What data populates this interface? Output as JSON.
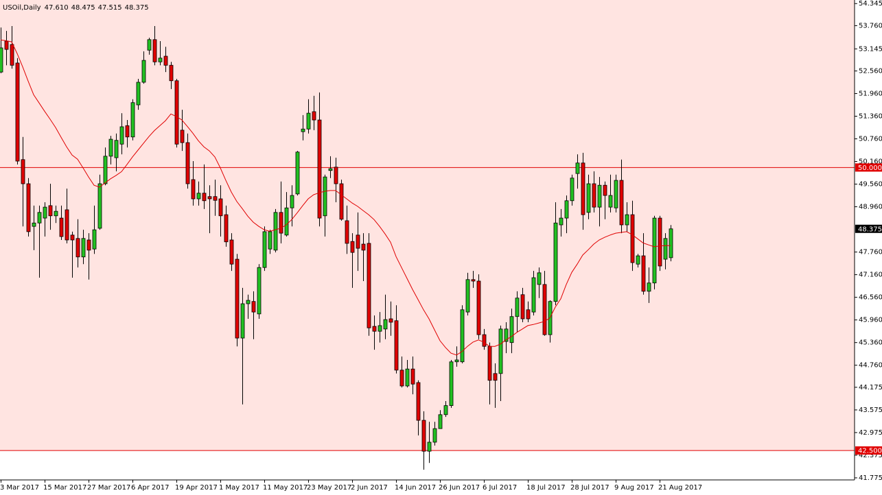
{
  "header": {
    "symbol": "USOil,Daily",
    "values": [
      "47.610",
      "48.475",
      "47.515",
      "48.375"
    ]
  },
  "chart_data": {
    "type": "candlestick",
    "categories": [
      "3 Mar 2017",
      null,
      null,
      null,
      null,
      null,
      null,
      null,
      "15 Mar 2017",
      null,
      null,
      null,
      null,
      null,
      null,
      null,
      "27 Mar 2017",
      null,
      null,
      null,
      null,
      null,
      null,
      null,
      "6 Apr 2017",
      null,
      null,
      null,
      null,
      null,
      null,
      null,
      "19 Apr 2017",
      null,
      null,
      null,
      null,
      null,
      null,
      null,
      "1 May 2017",
      null,
      null,
      null,
      null,
      null,
      null,
      null,
      "11 May 2017",
      null,
      null,
      null,
      null,
      null,
      null,
      null,
      "23 May 2017",
      null,
      null,
      null,
      null,
      null,
      null,
      null,
      "2 Jun 2017",
      null,
      null,
      null,
      null,
      null,
      null,
      null,
      "14 Jun 2017",
      null,
      null,
      null,
      null,
      null,
      null,
      null,
      "26 Jun 2017",
      null,
      null,
      null,
      null,
      null,
      null,
      null,
      "6 Jul 2017",
      null,
      null,
      null,
      null,
      null,
      null,
      null,
      "18 Jul 2017",
      null,
      null,
      null,
      null,
      null,
      null,
      null,
      "28 Jul 2017",
      null,
      null,
      null,
      null,
      null,
      null,
      null,
      "9 Aug 2017",
      null,
      null,
      null,
      null,
      null,
      null,
      null,
      "21 Aug 2017",
      null,
      null
    ],
    "open": [
      52.53,
      53.35,
      53.26,
      52.77,
      50.21,
      49.57,
      48.44,
      48.53,
      48.66,
      48.99,
      48.72,
      48.66,
      48.88,
      48.21,
      48.12,
      47.63,
      48.08,
      47.84,
      48.39,
      49.57,
      50.3,
      50.26,
      50.62,
      51.11,
      50.81,
      51.66,
      52.26,
      53.11,
      53.39,
      52.8,
      52.95,
      52.71,
      52.3,
      50.99,
      50.66,
      49.68,
      49.17,
      49.32,
      49.23,
      49.23,
      49.17,
      48.75,
      48.08,
      47.57,
      45.48,
      46.39,
      46.45,
      46.12,
      47.35,
      47.84,
      47.81,
      48.81,
      48.21,
      48.93,
      49.3,
      50.95,
      51.02,
      51.48,
      51.26,
      48.72,
      49.92,
      50.01,
      49.57,
      48.59,
      48.04,
      48.21,
      47.97,
      47.99,
      45.79,
      45.66,
      45.72,
      45.99,
      45.94,
      44.63,
      44.21,
      44.66,
      44.3,
      43.3,
      42.48,
      42.72,
      43.08,
      43.45,
      43.69,
      44.85,
      44.85,
      46.17,
      47.03,
      46.99,
      45.57,
      45.26,
      44.54,
      44.54,
      45.39,
      45.36,
      46.05,
      46.63,
      46.23,
      46.17,
      46.9,
      46.9,
      45.57,
      46.45,
      48.48,
      48.66,
      49.12,
      49.84,
      50.12,
      48.81,
      49.57,
      48.95,
      49.53,
      48.95,
      48.93,
      49.66,
      48.48,
      48.75,
      47.44,
      47.66,
      46.72,
      46.94,
      48.66,
      47.57,
      47.61
    ],
    "high": [
      53.71,
      53.62,
      53.75,
      52.9,
      50.81,
      49.72,
      48.99,
      48.99,
      49.08,
      49.57,
      48.99,
      48.99,
      49.44,
      48.3,
      48.63,
      48.35,
      48.26,
      48.99,
      49.81,
      50.53,
      50.84,
      50.9,
      51.44,
      51.26,
      51.81,
      52.35,
      53.08,
      53.44,
      53.75,
      53.35,
      53.2,
      52.8,
      52.35,
      51.53,
      50.9,
      50.17,
      49.63,
      50.08,
      49.53,
      49.68,
      49.53,
      48.99,
      48.26,
      47.71,
      46.81,
      46.63,
      46.72,
      47.44,
      48.44,
      48.35,
      48.9,
      49.63,
      49.35,
      49.53,
      50.44,
      51.39,
      51.81,
      51.9,
      51.99,
      49.81,
      50.3,
      50.26,
      49.68,
      48.99,
      48.26,
      48.81,
      48.26,
      48.26,
      46.08,
      46.17,
      46.63,
      46.45,
      46.35,
      44.99,
      44.9,
      44.99,
      44.36,
      43.54,
      43.26,
      43.26,
      43.57,
      43.81,
      44.9,
      45.26,
      46.35,
      47.21,
      47.26,
      47.17,
      45.72,
      45.36,
      44.81,
      45.81,
      45.9,
      46.26,
      46.72,
      46.81,
      46.45,
      47.26,
      47.35,
      47.26,
      46.48,
      49.08,
      48.9,
      49.26,
      49.81,
      50.35,
      50.39,
      49.81,
      49.9,
      49.75,
      49.63,
      49.81,
      49.81,
      50.21,
      49.08,
      49.12,
      47.71,
      48.26,
      47.35,
      48.72,
      48.72,
      48.26,
      48.475
    ],
    "low": [
      52.5,
      52.71,
      52.62,
      50.08,
      48.44,
      48.17,
      47.81,
      47.08,
      48.17,
      48.35,
      48.53,
      48.08,
      47.99,
      47.08,
      47.35,
      47.44,
      47.03,
      47.71,
      48.35,
      49.53,
      50.08,
      49.9,
      50.35,
      50.53,
      50.72,
      51.53,
      52.22,
      52.99,
      52.71,
      52.71,
      52.53,
      52.08,
      50.53,
      50.44,
      49.44,
      48.99,
      48.99,
      48.9,
      48.26,
      48.72,
      48.17,
      47.9,
      47.26,
      45.26,
      43.72,
      45.99,
      45.45,
      45.99,
      47.26,
      47.71,
      47.75,
      47.99,
      48.17,
      48.44,
      49.26,
      50.72,
      50.9,
      50.99,
      48.44,
      48.17,
      49.72,
      49.08,
      48.59,
      47.71,
      46.81,
      47.26,
      46.99,
      45.54,
      45.17,
      45.36,
      45.45,
      45.54,
      44.54,
      44.17,
      44.17,
      43.99,
      42.9,
      41.99,
      42.17,
      42.63,
      43.08,
      43.39,
      43.63,
      44.72,
      44.81,
      46.08,
      46.81,
      45.45,
      45.17,
      43.72,
      43.63,
      43.81,
      45.08,
      45.08,
      45.63,
      45.9,
      45.9,
      46.08,
      46.54,
      45.54,
      45.36,
      46.35,
      48.17,
      48.26,
      48.99,
      49.44,
      48.35,
      48.63,
      48.81,
      48.44,
      48.63,
      48.81,
      48.81,
      48.26,
      48.3,
      47.26,
      47.35,
      46.63,
      46.41,
      46.77,
      47.26,
      47.3,
      47.515
    ],
    "close": [
      53.17,
      53.13,
      52.71,
      50.17,
      49.57,
      48.3,
      48.53,
      48.81,
      48.95,
      48.72,
      48.84,
      48.17,
      48.08,
      48.08,
      47.63,
      48.12,
      47.81,
      48.35,
      49.57,
      50.3,
      50.75,
      50.72,
      51.08,
      50.81,
      51.72,
      52.26,
      52.84,
      53.39,
      52.8,
      52.9,
      52.71,
      52.3,
      50.62,
      50.66,
      49.57,
      49.17,
      49.32,
      49.12,
      49.17,
      49.13,
      48.72,
      48.03,
      47.44,
      45.48,
      46.39,
      46.48,
      46.17,
      47.35,
      48.3,
      48.3,
      48.81,
      48.26,
      48.93,
      49.26,
      50.41,
      51.02,
      51.44,
      51.26,
      48.66,
      49.75,
      49.97,
      49.57,
      48.63,
      47.99,
      47.75,
      47.86,
      47.81,
      45.75,
      45.66,
      45.81,
      45.97,
      45.9,
      44.63,
      44.21,
      44.66,
      44.26,
      43.3,
      42.48,
      42.72,
      43.08,
      43.45,
      43.69,
      44.85,
      44.9,
      46.23,
      47.03,
      46.99,
      45.57,
      45.26,
      44.36,
      44.36,
      45.72,
      45.72,
      46.05,
      46.54,
      45.99,
      45.99,
      47.08,
      47.21,
      45.57,
      46.45,
      48.53,
      48.66,
      49.12,
      49.72,
      50.12,
      48.75,
      49.57,
      48.95,
      49.53,
      49.26,
      49.26,
      49.66,
      48.48,
      48.75,
      47.48,
      47.66,
      46.72,
      46.94,
      48.66,
      47.39,
      48.12,
      48.375
    ],
    "up_color": "#22c022",
    "down_color": "#e00000",
    "overlay": {
      "type": "line",
      "color": "#e00000",
      "values": [
        53.38,
        53.36,
        53.33,
        53.02,
        52.67,
        52.29,
        51.93,
        51.71,
        51.49,
        51.28,
        51.06,
        50.8,
        50.55,
        50.33,
        50.22,
        49.99,
        49.75,
        49.53,
        49.48,
        49.59,
        49.7,
        49.79,
        49.89,
        50.08,
        50.28,
        50.46,
        50.64,
        50.82,
        50.98,
        51.11,
        51.24,
        51.42,
        51.35,
        51.26,
        51.09,
        50.91,
        50.71,
        50.55,
        50.44,
        50.28,
        49.99,
        49.66,
        49.35,
        49.1,
        48.91,
        48.71,
        48.55,
        48.44,
        48.35,
        48.31,
        48.35,
        48.39,
        48.48,
        48.62,
        48.8,
        48.99,
        49.17,
        49.28,
        49.33,
        49.37,
        49.39,
        49.39,
        49.28,
        49.17,
        49.06,
        48.97,
        48.86,
        48.75,
        48.62,
        48.44,
        48.24,
        48.02,
        47.64,
        47.35,
        47.06,
        46.77,
        46.5,
        46.23,
        45.99,
        45.7,
        45.41,
        45.23,
        45.08,
        45.03,
        45.12,
        45.26,
        45.37,
        45.43,
        45.37,
        45.26,
        45.26,
        45.32,
        45.43,
        45.52,
        45.63,
        45.72,
        45.81,
        45.84,
        45.88,
        45.92,
        46.01,
        46.3,
        46.52,
        46.9,
        47.22,
        47.44,
        47.68,
        47.82,
        47.97,
        48.08,
        48.15,
        48.21,
        48.26,
        48.28,
        48.3,
        48.22,
        48.11,
        48.0,
        47.95,
        47.9,
        47.92,
        47.93,
        47.93
      ]
    },
    "ylim": [
      41.72,
      54.44
    ],
    "yticks": [
      54.345,
      {
        "value": 53.76,
        "label": "53.760"
      },
      53.145,
      {
        "value": 52.56,
        "label": "52.560"
      },
      {
        "value": 51.96,
        "label": "51.960"
      },
      {
        "value": 51.36,
        "label": "51.360"
      },
      {
        "value": 50.76,
        "label": "50.760"
      },
      {
        "value": 50.16,
        "label": "50.160"
      },
      {
        "value": 49.56,
        "label": "49.560"
      },
      {
        "value": 48.96,
        "label": "48.960"
      },
      {
        "value": 47.76,
        "label": "47.760"
      },
      {
        "value": 47.16,
        "label": "47.160"
      },
      {
        "value": 46.56,
        "label": "46.560"
      },
      {
        "value": 45.96,
        "label": "45.960"
      },
      {
        "value": 45.36,
        "label": "45.360"
      },
      {
        "value": 44.76,
        "label": "44.760"
      },
      44.175,
      43.575,
      42.975,
      42.375,
      41.775
    ],
    "hlines": [
      {
        "value": 50,
        "label": "50.000",
        "color": "#e00000"
      },
      {
        "value": 42.5,
        "label": "42.500",
        "color": "#e00000"
      }
    ],
    "current_price": {
      "value": 48.375,
      "label": "48.375"
    },
    "background": "#ffe4e1"
  }
}
